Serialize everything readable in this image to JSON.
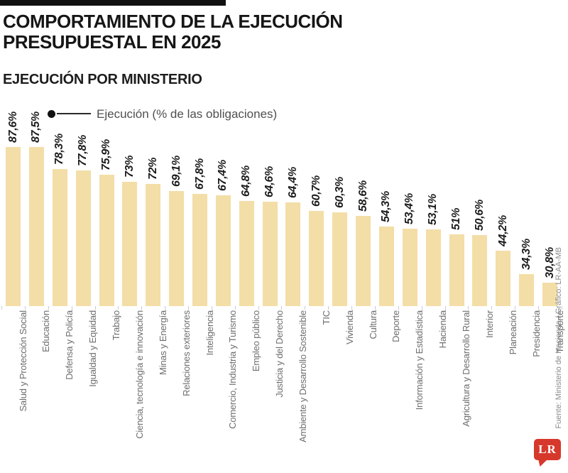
{
  "header": {
    "title_line1": "COMPORTAMIENTO DE LA EJECUCIÓN",
    "title_line2": "PRESUPUESTAL EN 2025",
    "section_title": "EJECUCIÓN POR MINISTERIO"
  },
  "legend": {
    "label": "Ejecución (% de las obligaciones)"
  },
  "chart_data": {
    "type": "bar",
    "title": "EJECUCIÓN POR MINISTERIO",
    "legend": [
      "Ejecución (% de las obligaciones)"
    ],
    "legend_position": "top-left",
    "orientation": "vertical",
    "grid": false,
    "xlabel": "",
    "ylabel": "",
    "ylim": [
      21,
      90
    ],
    "bar_color": "#F4DEA7",
    "categories": [
      "Salud y Protección Social",
      "Educación",
      "Defensa y Policía",
      "Igualdad y Equidad",
      "Trabajo",
      "Ciencia, tecnología e innovación",
      "Minas y Energía",
      "Relaciones exteriores",
      "Inteligencia",
      "Comercio, Industria y Turismo",
      "Empleo público",
      "Justicia y del Derecho",
      "Ambiente y Desarrollo Sostenible",
      "TIC",
      "Vivienda",
      "Cultura",
      "Deporte",
      "Información y Estadística",
      "Hacienda",
      "Agricultura y Desarrollo Rural",
      "Interior",
      "Planeación",
      "Presidencia",
      "Transporte"
    ],
    "values": [
      87.6,
      87.5,
      78.3,
      77.8,
      75.9,
      73,
      72,
      69.1,
      67.8,
      67.4,
      64.8,
      64.6,
      64.4,
      60.7,
      60.3,
      58.6,
      54.3,
      53.4,
      53.1,
      51,
      50.6,
      44.2,
      34.3,
      30.8
    ],
    "value_labels": [
      "87,6%",
      "87,5%",
      "78,3%",
      "77,8%",
      "75,9%",
      "73%",
      "72%",
      "69,1%",
      "67,8%",
      "67,4%",
      "64,8%",
      "64,6%",
      "64,4%",
      "60,7%",
      "60,3%",
      "58,6%",
      "54,3%",
      "53,4%",
      "53,1%",
      "51%",
      "50,6%",
      "44,2%",
      "34,3%",
      "30,8%"
    ]
  },
  "source": {
    "credit": "Fuente: Ministerio de Hacienda / Gráfico: LR-AA-MB"
  },
  "branding": {
    "logo_text": "LR",
    "logo_color": "#D7382C"
  }
}
